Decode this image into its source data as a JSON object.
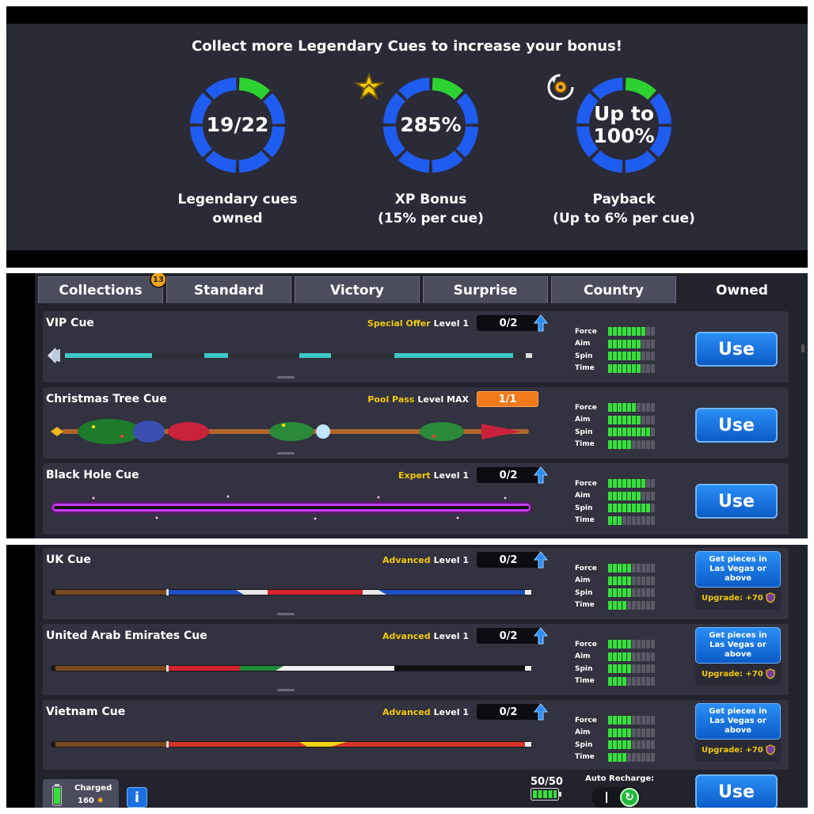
{
  "bonus": {
    "headline": "Collect more Legendary Cues to increase your bonus!",
    "rings": [
      {
        "value": "19/22",
        "caption_line1": "Legendary cues",
        "caption_line2": "owned"
      },
      {
        "value": "285%",
        "caption_line1": "XP Bonus",
        "caption_line2": "(15% per cue)"
      },
      {
        "value_line1": "Up to",
        "value_line2": "100%",
        "caption_line1": "Payback",
        "caption_line2": "(Up to 6% per cue)"
      }
    ],
    "colors": {
      "ring_blue": "#1f5cf0",
      "ring_green": "#2dd230"
    }
  },
  "tabs": {
    "items": [
      "Collections",
      "Standard",
      "Victory",
      "Surprise",
      "Country",
      "Owned"
    ],
    "active": "Owned",
    "collections_badge": "13"
  },
  "stat_labels": [
    "Force",
    "Aim",
    "Spin",
    "Time"
  ],
  "owned_cues": [
    {
      "name": "VIP Cue",
      "tag": "Special Offer",
      "level": "Level 1",
      "progress": "0/2",
      "action": "Use",
      "stats": [
        8,
        7,
        7,
        7
      ]
    },
    {
      "name": "Christmas Tree Cue",
      "tag": "Pool Pass",
      "level": "Level MAX",
      "progress": "1/1",
      "action": "Use",
      "stats": [
        6,
        7,
        9,
        5
      ]
    },
    {
      "name": "Black Hole Cue",
      "tag": "Expert",
      "level": "Level 1",
      "progress": "0/2",
      "action": "Use",
      "stats": [
        8,
        7,
        9,
        3
      ]
    }
  ],
  "country_cues": [
    {
      "name": "UK Cue",
      "tag": "Advanced",
      "level": "Level 1",
      "progress": "0/2",
      "action": "Get pieces in Las Vegas or above",
      "upgrade": "Upgrade: +70",
      "stats": [
        5,
        5,
        5,
        4
      ]
    },
    {
      "name": "United Arab Emirates Cue",
      "tag": "Advanced",
      "level": "Level 1",
      "progress": "0/2",
      "action": "Get pieces in Las Vegas or above",
      "upgrade": "Upgrade: +70",
      "stats": [
        5,
        5,
        5,
        4
      ]
    },
    {
      "name": "Vietnam Cue",
      "tag": "Advanced",
      "level": "Level 1",
      "progress": "0/2",
      "action": "Get pieces in Las Vegas or above",
      "upgrade": "Upgrade: +70",
      "stats": [
        5,
        5,
        5,
        4
      ]
    }
  ],
  "bottom_bar": {
    "charged_label": "Charged",
    "charged_value": "160",
    "info_label": "i",
    "energy": "50/50",
    "auto_recharge_label": "Auto Recharge:",
    "toggle_state": "I",
    "use_label": "Use"
  }
}
